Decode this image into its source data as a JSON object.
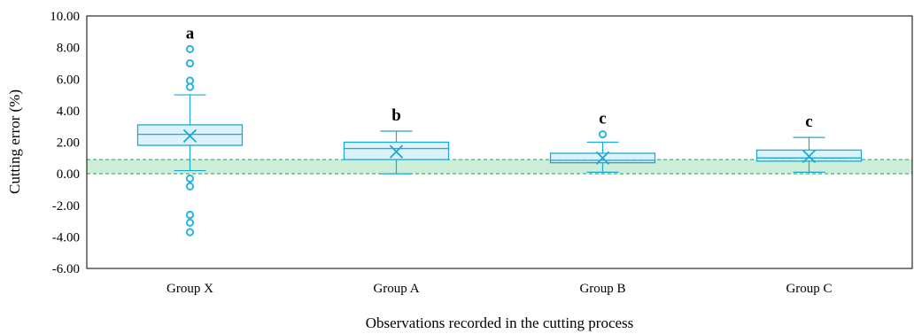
{
  "chart_data": {
    "type": "box",
    "xlabel": "Observations recorded in the cutting process",
    "ylabel": "Cutting error (%)",
    "ylim": [
      -6,
      10
    ],
    "yticks": [
      "10.00",
      "8.00",
      "6.00",
      "4.00",
      "2.00",
      "0.00",
      "-2.00",
      "-4.00",
      "-6.00"
    ],
    "ytick_values": [
      10,
      8,
      6,
      4,
      2,
      0,
      -2,
      -4,
      -6
    ],
    "grid": false,
    "reference_band": {
      "from": 0.0,
      "to": 0.9,
      "color": "#cdeed8",
      "line_color": "#2e9a5a"
    },
    "colors": {
      "box_fill": "#d6f1fb",
      "box_stroke": "#1ea8d4",
      "outlier": "#29b5e8"
    },
    "groups": [
      {
        "name": "Group X",
        "letter": "a",
        "whisker_min": 0.2,
        "q1": 1.8,
        "median": 2.5,
        "q3": 3.1,
        "whisker_max": 5.0,
        "mean": 2.4,
        "outliers": [
          7.9,
          7.0,
          5.9,
          5.5,
          -0.3,
          -0.8,
          -2.6,
          -3.1,
          -3.7
        ]
      },
      {
        "name": "Group A",
        "letter": "b",
        "whisker_min": 0.0,
        "q1": 0.9,
        "median": 1.6,
        "q3": 2.0,
        "whisker_max": 2.7,
        "mean": 1.4,
        "outliers": []
      },
      {
        "name": "Group B",
        "letter": "c",
        "whisker_min": 0.1,
        "q1": 0.7,
        "median": 0.85,
        "q3": 1.3,
        "whisker_max": 2.0,
        "mean": 1.0,
        "outliers": [
          2.5
        ]
      },
      {
        "name": "Group C",
        "letter": "c",
        "whisker_min": 0.1,
        "q1": 0.8,
        "median": 1.0,
        "q3": 1.5,
        "whisker_max": 2.3,
        "mean": 1.1,
        "outliers": []
      }
    ]
  }
}
